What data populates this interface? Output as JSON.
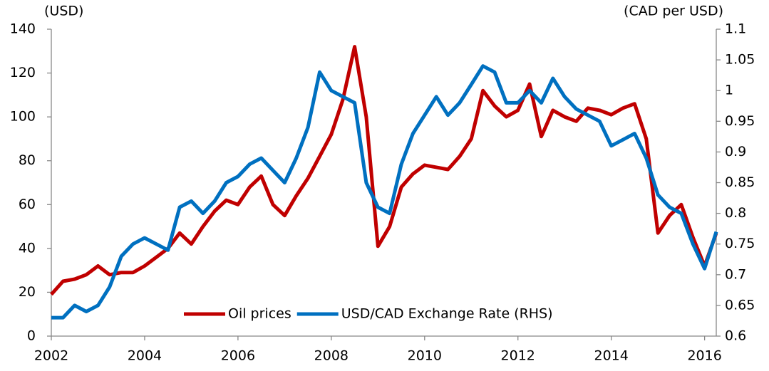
{
  "chart_data": {
    "type": "line",
    "y_label": "(USD)",
    "y2_label": "(CAD per USD)",
    "x": [
      2002,
      2002.25,
      2002.5,
      2002.75,
      2003,
      2003.25,
      2003.5,
      2003.75,
      2004,
      2004.25,
      2004.5,
      2004.75,
      2005,
      2005.25,
      2005.5,
      2005.75,
      2006,
      2006.25,
      2006.5,
      2006.75,
      2007,
      2007.25,
      2007.5,
      2007.75,
      2008,
      2008.25,
      2008.5,
      2008.75,
      2009,
      2009.25,
      2009.5,
      2009.75,
      2010,
      2010.25,
      2010.5,
      2010.75,
      2011,
      2011.25,
      2011.5,
      2011.75,
      2012,
      2012.25,
      2012.5,
      2012.75,
      2013,
      2013.25,
      2013.5,
      2013.75,
      2014,
      2014.25,
      2014.5,
      2014.75,
      2015,
      2015.25,
      2015.5,
      2015.75,
      2016,
      2016.25
    ],
    "series": [
      {
        "name": "Oil prices",
        "color": "#c00000",
        "values": [
          19,
          25,
          26,
          28,
          32,
          28,
          29,
          29,
          32,
          36,
          40,
          47,
          42,
          50,
          57,
          62,
          60,
          68,
          73,
          60,
          55,
          64,
          72,
          82,
          92,
          108,
          132,
          100,
          41,
          50,
          68,
          74,
          78,
          77,
          76,
          82,
          90,
          112,
          105,
          100,
          103,
          115,
          91,
          103,
          100,
          98,
          104,
          103,
          101,
          104,
          106,
          90,
          47,
          55,
          60,
          45,
          32,
          47
        ]
      },
      {
        "name": "USD/CAD Exchange Rate (RHS)",
        "color": "#0070c0",
        "axis": "y2",
        "values": [
          0.63,
          0.63,
          0.65,
          0.64,
          0.65,
          0.68,
          0.73,
          0.75,
          0.76,
          0.75,
          0.74,
          0.81,
          0.82,
          0.8,
          0.82,
          0.85,
          0.86,
          0.88,
          0.89,
          0.87,
          0.85,
          0.89,
          0.94,
          1.03,
          1.0,
          0.99,
          0.98,
          0.85,
          0.81,
          0.8,
          0.88,
          0.93,
          0.96,
          0.99,
          0.96,
          0.98,
          1.01,
          1.04,
          1.03,
          0.98,
          0.98,
          1.0,
          0.98,
          1.02,
          0.99,
          0.97,
          0.96,
          0.95,
          0.91,
          0.92,
          0.93,
          0.89,
          0.83,
          0.81,
          0.8,
          0.75,
          0.71,
          0.77
        ]
      }
    ],
    "xlim": [
      2002,
      2016.25
    ],
    "xticks": [
      2002,
      2004,
      2006,
      2008,
      2010,
      2012,
      2014,
      2016
    ],
    "ylim": [
      0,
      140
    ],
    "yticks": [
      0,
      20,
      40,
      60,
      80,
      100,
      120,
      140
    ],
    "y2lim": [
      0.6,
      1.1
    ],
    "y2ticks": [
      0.6,
      0.65,
      0.7,
      0.75,
      0.8,
      0.85,
      0.9,
      0.95,
      1,
      1.05,
      1.1
    ],
    "legend": "bottom"
  }
}
